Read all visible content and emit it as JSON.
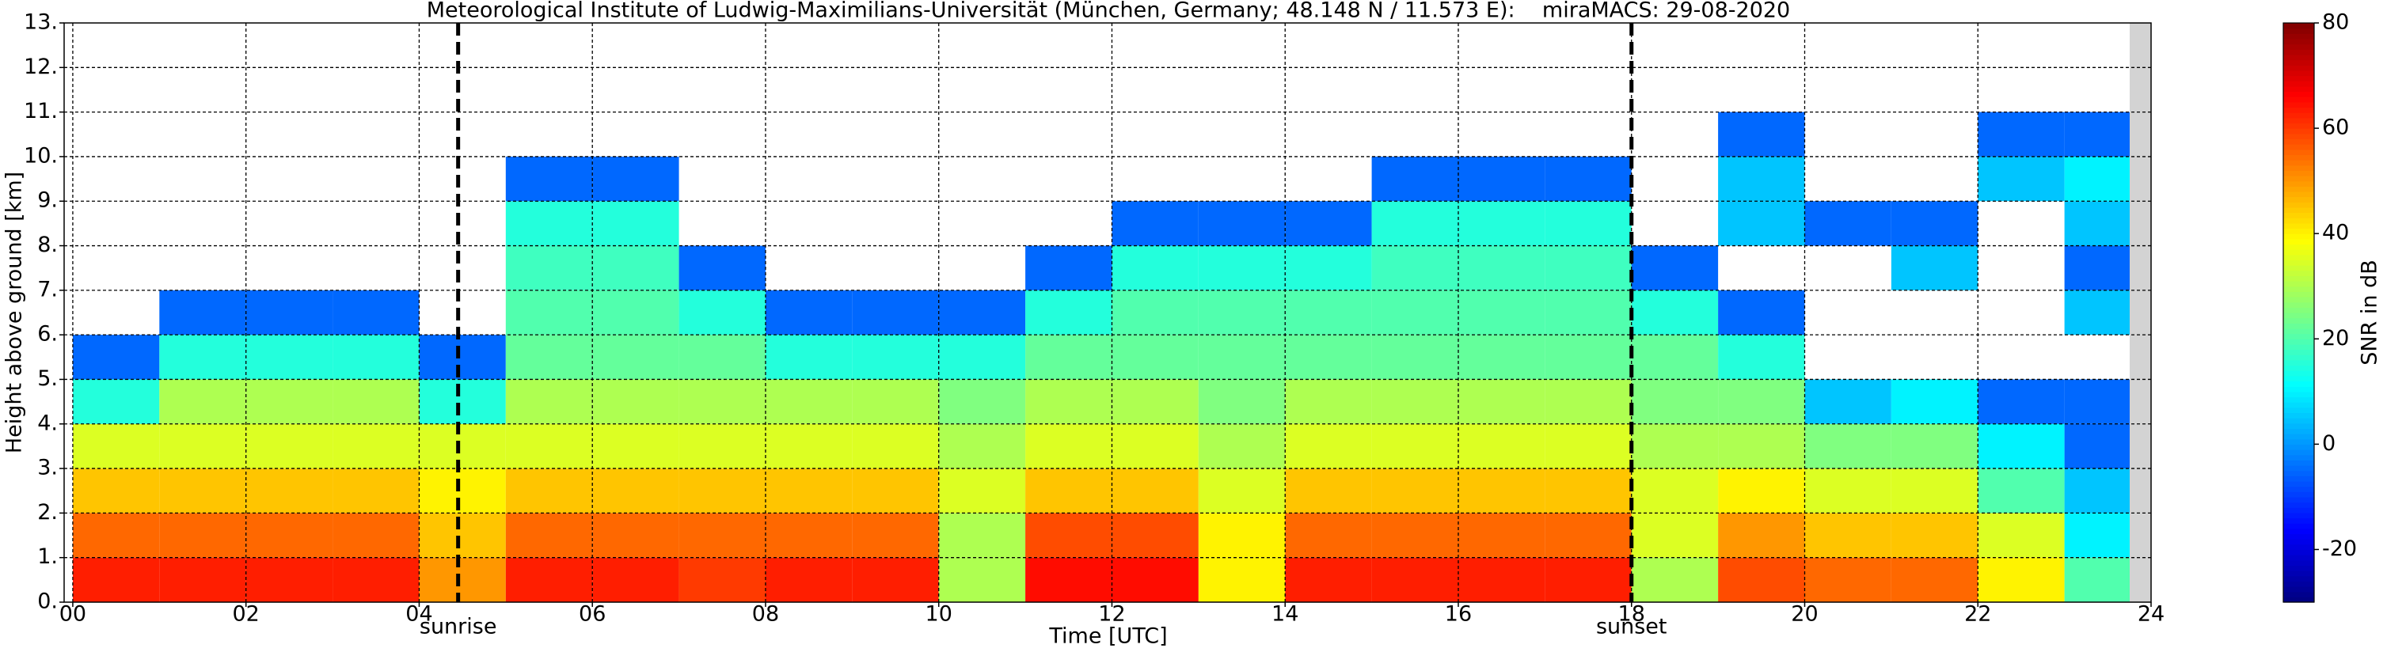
{
  "chart_data": {
    "type": "heatmap",
    "title": "Meteorological Institute of Ludwig-Maximilians-Universität (München, Germany; 48.148 N / 11.573 E):    miraMACS: 29-08-2020",
    "xlabel": "Time [UTC]",
    "ylabel": "Height above ground [km]",
    "colorbar_label": "SNR in dB",
    "colormap": "jet",
    "clim": [
      -30,
      80
    ],
    "cticks": [
      -20,
      0,
      20,
      40,
      60,
      80
    ],
    "xlim": [
      -0.1,
      24
    ],
    "ylim": [
      0,
      13
    ],
    "xticks": [
      {
        "value": 0,
        "label": "00"
      },
      {
        "value": 2,
        "label": "02"
      },
      {
        "value": 4,
        "label": "04"
      },
      {
        "value": 6,
        "label": "06"
      },
      {
        "value": 8,
        "label": "08"
      },
      10,
      12,
      14,
      16,
      18,
      20,
      22,
      24
    ],
    "yticks": [
      {
        "value": 0,
        "label": "0."
      },
      {
        "value": 1,
        "label": "1."
      },
      {
        "value": 2,
        "label": "2."
      },
      {
        "value": 3,
        "label": "3."
      },
      {
        "value": 4,
        "label": "4."
      },
      {
        "value": 5,
        "label": "5."
      },
      {
        "value": 6,
        "label": "6."
      },
      {
        "value": 7,
        "label": "7."
      },
      {
        "value": 8,
        "label": "8."
      },
      {
        "value": 9,
        "label": "9."
      },
      {
        "value": 10,
        "label": "10."
      },
      {
        "value": 11,
        "label": "11."
      },
      {
        "value": 12,
        "label": "12."
      },
      {
        "value": 13,
        "label": "13."
      }
    ],
    "grid": true,
    "vlines": [
      {
        "x": 4.45,
        "label": "sunrise"
      },
      {
        "x": 18.0,
        "label": "sunset"
      }
    ],
    "x": [
      0.5,
      1.5,
      2.5,
      3.5,
      4.5,
      5.5,
      6.5,
      7.5,
      8.5,
      9.5,
      10.5,
      11.5,
      12.5,
      13.5,
      14.5,
      15.5,
      16.5,
      17.5,
      18.5,
      19.5,
      20.5,
      21.5,
      22.5,
      23.5
    ],
    "y": [
      0.5,
      1.5,
      2.5,
      3.5,
      4.5,
      5.5,
      6.5,
      7.5,
      8.5,
      9.5,
      10.5,
      11.5,
      12.5
    ],
    "values": [
      [
        63,
        55,
        45,
        35,
        15,
        -5,
        null,
        null,
        null,
        null,
        null,
        null,
        null
      ],
      [
        63,
        55,
        45,
        35,
        30,
        15,
        -5,
        null,
        null,
        null,
        null,
        null,
        null
      ],
      [
        63,
        55,
        45,
        35,
        30,
        15,
        -5,
        null,
        null,
        null,
        null,
        null,
        null
      ],
      [
        63,
        55,
        45,
        35,
        30,
        15,
        -5,
        null,
        null,
        null,
        null,
        null,
        null
      ],
      [
        50,
        45,
        40,
        35,
        15,
        -5,
        null,
        null,
        null,
        null,
        null,
        null,
        null
      ],
      [
        63,
        55,
        45,
        35,
        30,
        22,
        20,
        18,
        15,
        -5,
        null,
        null,
        null
      ],
      [
        63,
        55,
        45,
        35,
        30,
        22,
        20,
        18,
        15,
        -5,
        null,
        null,
        null
      ],
      [
        60,
        55,
        45,
        35,
        30,
        22,
        15,
        -5,
        null,
        null,
        null,
        null,
        null
      ],
      [
        63,
        55,
        45,
        35,
        30,
        15,
        -5,
        null,
        null,
        null,
        null,
        null,
        null
      ],
      [
        63,
        55,
        45,
        35,
        30,
        15,
        -5,
        null,
        null,
        null,
        null,
        null,
        null
      ],
      [
        30,
        30,
        35,
        30,
        25,
        15,
        -5,
        null,
        null,
        null,
        null,
        null,
        null
      ],
      [
        65,
        58,
        45,
        35,
        30,
        22,
        15,
        -5,
        null,
        null,
        null,
        null,
        null
      ],
      [
        65,
        58,
        45,
        35,
        30,
        22,
        20,
        15,
        -5,
        null,
        null,
        null,
        null
      ],
      [
        40,
        40,
        35,
        30,
        25,
        22,
        20,
        15,
        -5,
        null,
        null,
        null,
        null
      ],
      [
        63,
        55,
        45,
        35,
        30,
        22,
        20,
        15,
        -5,
        null,
        null,
        null,
        null
      ],
      [
        63,
        55,
        45,
        35,
        30,
        22,
        20,
        18,
        15,
        -5,
        null,
        null,
        null
      ],
      [
        63,
        55,
        45,
        35,
        30,
        22,
        20,
        18,
        15,
        -5,
        null,
        null,
        null
      ],
      [
        63,
        55,
        45,
        35,
        30,
        22,
        20,
        18,
        15,
        -5,
        null,
        null,
        null
      ],
      [
        30,
        35,
        35,
        30,
        25,
        22,
        15,
        -5,
        null,
        null,
        null,
        null,
        null
      ],
      [
        58,
        50,
        40,
        30,
        25,
        15,
        -5,
        null,
        5,
        5,
        -5,
        null,
        null
      ],
      [
        55,
        45,
        35,
        25,
        5,
        null,
        null,
        null,
        -5,
        null,
        null,
        null,
        null
      ],
      [
        55,
        45,
        35,
        25,
        10,
        null,
        null,
        5,
        -5,
        null,
        null,
        null,
        null
      ],
      [
        40,
        35,
        20,
        10,
        -5,
        null,
        null,
        null,
        null,
        5,
        -5,
        null,
        null
      ],
      [
        20,
        10,
        5,
        -5,
        -5,
        null,
        5,
        -5,
        5,
        10,
        -5,
        null,
        null
      ]
    ]
  }
}
